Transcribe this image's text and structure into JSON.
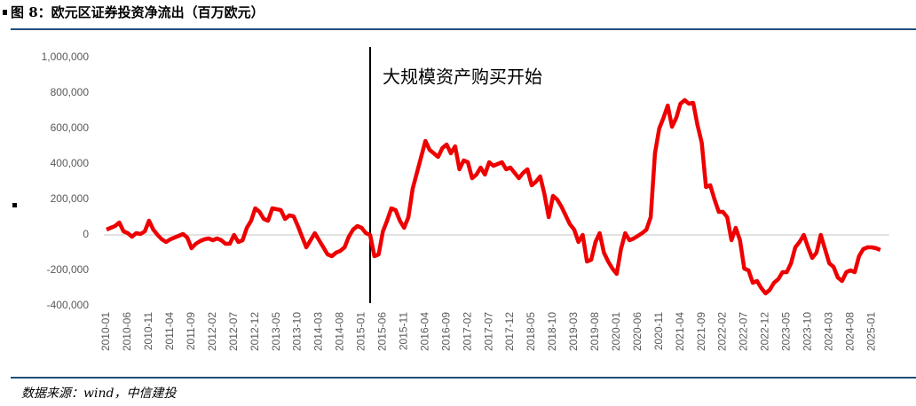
{
  "chart_data": {
    "type": "line",
    "title": "图 8：欧元区证券投资净流出（百万欧元）",
    "source": "数据来源：wind，中信建投",
    "annotations": [
      {
        "text": "大规模资产购买开始",
        "x": 62
      }
    ],
    "ylim": [
      -400000,
      1000000
    ],
    "yticks": [
      {
        "value": -400000,
        "label": "-400,000"
      },
      {
        "value": -200000,
        "label": "-200,000"
      },
      0,
      {
        "value": 200000,
        "label": "200,000"
      },
      {
        "value": 400000,
        "label": "400,000"
      },
      {
        "value": 600000,
        "label": "600,000"
      },
      {
        "value": 800000,
        "label": "800,000"
      },
      {
        "value": 1000000,
        "label": "1,000,000"
      }
    ],
    "categories": [
      "2010-01",
      null,
      null,
      null,
      null,
      "2010-06",
      null,
      null,
      null,
      null,
      "2010-11",
      null,
      null,
      null,
      null,
      "2011-04",
      null,
      null,
      null,
      null,
      "2011-09",
      null,
      null,
      null,
      null,
      "2012-02",
      null,
      null,
      null,
      null,
      "2012-07",
      null,
      null,
      null,
      null,
      "2012-12",
      null,
      null,
      null,
      null,
      "2013-05",
      null,
      null,
      null,
      null,
      "2013-10",
      null,
      null,
      null,
      null,
      "2014-03",
      null,
      null,
      null,
      null,
      "2014-08",
      null,
      null,
      null,
      null,
      "2015-01",
      null,
      null,
      null,
      null,
      "2015-06",
      null,
      null,
      null,
      null,
      "2015-11",
      null,
      null,
      null,
      null,
      "2016-04",
      null,
      null,
      null,
      null,
      "2016-09",
      null,
      null,
      null,
      null,
      "2017-02",
      null,
      null,
      null,
      null,
      "2017-07",
      null,
      null,
      null,
      null,
      "2017-12",
      null,
      null,
      null,
      null,
      "2018-05",
      null,
      null,
      null,
      null,
      "2018-10",
      null,
      null,
      null,
      null,
      "2019-03",
      null,
      null,
      null,
      null,
      "2019-08",
      null,
      null,
      null,
      null,
      "2020-01",
      null,
      null,
      null,
      null,
      "2020-06",
      null,
      null,
      null,
      null,
      "2020-11",
      null,
      null,
      null,
      null,
      "2021-04",
      null,
      null,
      null,
      null,
      "2021-09",
      null,
      null,
      null,
      null,
      "2022-02",
      null,
      null,
      null,
      null,
      "2022-07",
      null,
      null,
      null,
      null,
      "2022-12",
      null,
      null,
      null,
      null,
      "2023-05",
      null,
      null,
      null,
      null,
      "2023-10",
      null,
      null,
      null,
      null,
      "2024-03",
      null,
      null,
      null,
      null,
      "2024-08",
      null,
      null,
      null,
      null,
      "2025-01",
      null,
      null
    ],
    "series": [
      {
        "name": "欧元区证券投资净流出",
        "color": "#ee0000",
        "values": [
          30000,
          40000,
          50000,
          70000,
          20000,
          10000,
          -10000,
          10000,
          5000,
          20000,
          80000,
          30000,
          0,
          -25000,
          -40000,
          -25000,
          -15000,
          -5000,
          5000,
          -15000,
          -75000,
          -50000,
          -35000,
          -25000,
          -20000,
          -30000,
          -20000,
          -30000,
          -50000,
          -50000,
          0,
          -40000,
          -30000,
          40000,
          80000,
          150000,
          130000,
          90000,
          80000,
          150000,
          145000,
          140000,
          90000,
          110000,
          105000,
          50000,
          -10000,
          -70000,
          -30000,
          10000,
          -30000,
          -70000,
          -110000,
          -120000,
          -100000,
          -90000,
          -70000,
          -10000,
          30000,
          50000,
          40000,
          10000,
          0,
          -120000,
          -110000,
          20000,
          80000,
          150000,
          140000,
          80000,
          40000,
          100000,
          260000,
          350000,
          440000,
          530000,
          480000,
          460000,
          440000,
          490000,
          510000,
          460000,
          500000,
          370000,
          420000,
          410000,
          320000,
          340000,
          380000,
          340000,
          410000,
          390000,
          400000,
          410000,
          370000,
          380000,
          350000,
          320000,
          350000,
          370000,
          280000,
          300000,
          330000,
          230000,
          100000,
          220000,
          200000,
          160000,
          110000,
          60000,
          30000,
          -40000,
          0,
          -150000,
          -140000,
          -40000,
          10000,
          -100000,
          -150000,
          -190000,
          -220000,
          -80000,
          10000,
          -30000,
          -20000,
          -5000,
          10000,
          30000,
          100000,
          460000,
          600000,
          660000,
          730000,
          610000,
          660000,
          740000,
          760000,
          740000,
          745000,
          620000,
          520000,
          270000,
          280000,
          200000,
          130000,
          130000,
          100000,
          -30000,
          40000,
          -30000,
          -190000,
          -200000,
          -270000,
          -260000,
          -300000,
          -330000,
          -310000,
          -270000,
          -250000,
          -210000,
          -210000,
          -160000,
          -70000,
          -40000,
          0,
          -70000,
          -130000,
          -100000,
          0,
          -80000,
          -160000,
          -180000,
          -240000,
          -260000,
          -210000,
          -200000,
          -210000,
          -120000,
          -80000,
          -70000,
          -70000,
          -75000,
          -85000
        ]
      }
    ]
  }
}
